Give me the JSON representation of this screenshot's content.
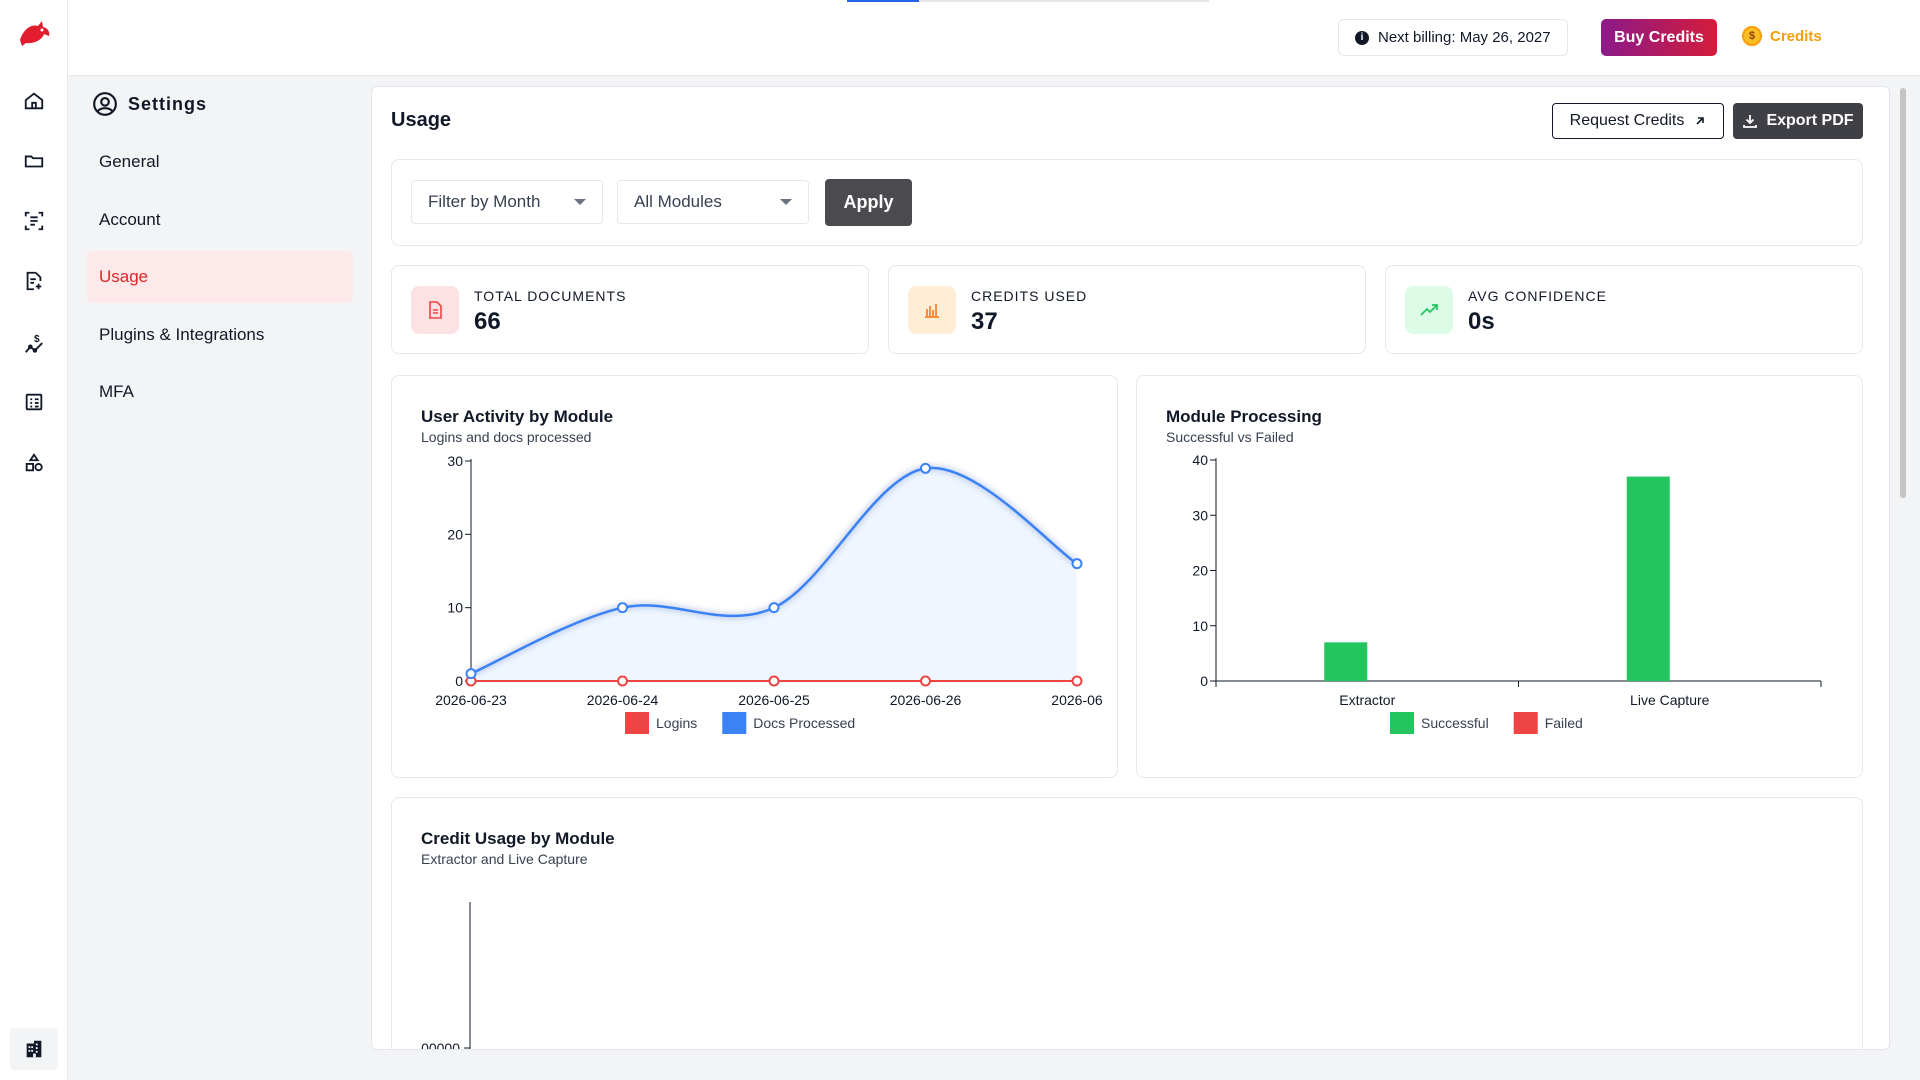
{
  "topbar": {
    "progress_fraction": 0.2,
    "billing_text": "Next billing: May 26, 2027",
    "buy_credits_label": "Buy Credits",
    "credits_label": "Credits",
    "coin_symbol": "$"
  },
  "rail": {
    "items": [
      {
        "icon": "home-icon"
      },
      {
        "icon": "folder-icon"
      },
      {
        "icon": "scan-document-icon"
      },
      {
        "icon": "document-edit-icon"
      },
      {
        "icon": "dollar-trend-icon"
      },
      {
        "icon": "list-checkbox-icon"
      },
      {
        "icon": "shapes-icon"
      }
    ],
    "bottom_icon": "building-icon"
  },
  "settings": {
    "title": "Settings",
    "items": [
      {
        "label": "General",
        "active": false
      },
      {
        "label": "Account",
        "active": false
      },
      {
        "label": "Usage",
        "active": true
      },
      {
        "label": "Plugins & Integrations",
        "active": false
      },
      {
        "label": "MFA",
        "active": false
      }
    ]
  },
  "main": {
    "title": "Usage",
    "request_credits_label": "Request Credits",
    "export_pdf_label": "Export PDF",
    "filters": {
      "month_value": "Filter by Month",
      "module_value": "All Modules",
      "apply_label": "Apply"
    },
    "stats": [
      {
        "label": "TOTAL DOCUMENTS",
        "value": "66",
        "icon": "document-icon",
        "bg": "#fde2e4",
        "fg": "#ef4444"
      },
      {
        "label": "CREDITS USED",
        "value": "37",
        "icon": "bar-chart-icon",
        "bg": "#ffedd5",
        "fg": "#f97316"
      },
      {
        "label": "AVG CONFIDENCE",
        "value": "0s",
        "icon": "trend-up-icon",
        "bg": "#dcfce7",
        "fg": "#22c55e"
      }
    ],
    "activity_chart": {
      "title": "User Activity by Module",
      "subtitle": "Logins and docs processed"
    },
    "processing_chart": {
      "title": "Module Processing",
      "subtitle": "Successful vs Failed"
    },
    "credit_chart": {
      "title": "Credit Usage by Module",
      "subtitle": "Extractor and Live Capture",
      "visible_tick": "00000"
    }
  },
  "chart_data": [
    {
      "type": "line",
      "title": "User Activity by Module",
      "subtitle": "Logins and docs processed",
      "x": [
        "2026-06-23",
        "2026-06-24",
        "2026-06-25",
        "2026-06-26",
        "2026-06"
      ],
      "ylim": [
        0,
        30
      ],
      "yticks": [
        0,
        10,
        20,
        30
      ],
      "series": [
        {
          "name": "Logins",
          "color": "#ef4444",
          "values": [
            0,
            0,
            0,
            0,
            0
          ]
        },
        {
          "name": "Docs Processed",
          "color": "#3b82f6",
          "values": [
            1,
            10,
            10,
            29,
            16
          ]
        }
      ],
      "legend": "bottom"
    },
    {
      "type": "bar",
      "title": "Module Processing",
      "subtitle": "Successful vs Failed",
      "categories": [
        "Extractor",
        "Live Capture"
      ],
      "ylim": [
        0,
        40
      ],
      "yticks": [
        0,
        10,
        20,
        30,
        40
      ],
      "series": [
        {
          "name": "Successful",
          "color": "#22c55e",
          "values": [
            7,
            37
          ]
        },
        {
          "name": "Failed",
          "color": "#ef4444",
          "values": [
            0,
            0
          ]
        }
      ],
      "legend": "bottom"
    }
  ]
}
